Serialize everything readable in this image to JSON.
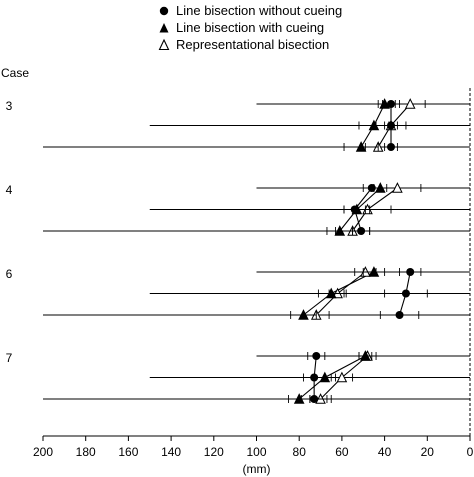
{
  "chart_data": {
    "type": "line",
    "row_header": "Case",
    "xlabel": "(mm)",
    "xlim": [
      200,
      0
    ],
    "xticks": [
      200,
      180,
      160,
      140,
      120,
      100,
      80,
      60,
      40,
      20,
      0
    ],
    "reference_line_x": 0,
    "legend": [
      {
        "label": "Line bisection without cueing",
        "marker": "filled-circle"
      },
      {
        "label": "Line bisection with cueing",
        "marker": "filled-triangle"
      },
      {
        "label": "Representational bisection",
        "marker": "open-triangle"
      }
    ],
    "line_lengths_mm": [
      100,
      150,
      200
    ],
    "cases": [
      {
        "case": "3",
        "without_cueing": [
          {
            "mean": 37,
            "err": 4
          },
          {
            "mean": 37,
            "err": 3
          },
          {
            "mean": 37,
            "err": 3
          }
        ],
        "with_cueing": [
          {
            "mean": 40,
            "err": 3
          },
          {
            "mean": 45,
            "err": 7
          },
          {
            "mean": 51,
            "err": 8
          }
        ],
        "representational": [
          {
            "mean": 28,
            "err": 7
          },
          {
            "mean": 37,
            "err": 7
          },
          {
            "mean": 43,
            "err": 6
          }
        ]
      },
      {
        "case": "4",
        "without_cueing": [
          {
            "mean": 46,
            "err": 4
          },
          {
            "mean": 54,
            "err": 5
          },
          {
            "mean": 51,
            "err": 4
          }
        ],
        "with_cueing": [
          {
            "mean": 42,
            "err": 3
          },
          {
            "mean": 53,
            "err": 6
          },
          {
            "mean": 61,
            "err": 6
          }
        ],
        "representational": [
          {
            "mean": 34,
            "err": 11
          },
          {
            "mean": 48,
            "err": 11
          },
          {
            "mean": 55,
            "err": 8
          }
        ]
      },
      {
        "case": "6",
        "without_cueing": [
          {
            "mean": 28,
            "err": 5
          },
          {
            "mean": 30,
            "err": 10
          },
          {
            "mean": 33,
            "err": 9
          }
        ],
        "with_cueing": [
          {
            "mean": 45,
            "err": 5
          },
          {
            "mean": 65,
            "err": 6
          },
          {
            "mean": 78,
            "err": 6
          }
        ],
        "representational": [
          {
            "mean": 49,
            "err": 5
          },
          {
            "mean": 62,
            "err": 4
          },
          {
            "mean": 72,
            "err": 6
          }
        ]
      },
      {
        "case": "7",
        "without_cueing": [
          {
            "mean": 72,
            "err": 4
          },
          {
            "mean": 73,
            "err": 5
          },
          {
            "mean": 73,
            "err": 6
          }
        ],
        "with_cueing": [
          {
            "mean": 49,
            "err": 3
          },
          {
            "mean": 68,
            "err": 5
          },
          {
            "mean": 80,
            "err": 5
          }
        ],
        "representational": [
          {
            "mean": 48,
            "err": 4
          },
          {
            "mean": 60,
            "err": 5
          },
          {
            "mean": 70,
            "err": 5
          }
        ]
      }
    ]
  }
}
